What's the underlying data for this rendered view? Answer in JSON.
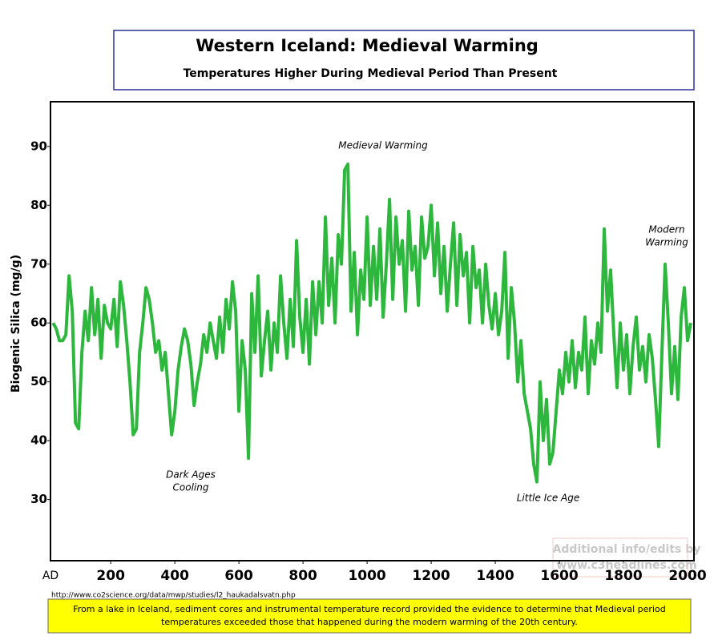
{
  "chart_data": {
    "type": "line",
    "title": "Western Iceland: Medieval Warming",
    "subtitle": "Temperatures Higher During Medieval Period Than Present",
    "y_label": "Biogenic Silica (mg/g)",
    "x_unit_label": "AD",
    "xlim": [
      12,
      2020
    ],
    "xticks": [
      200,
      400,
      600,
      800,
      1000,
      1200,
      1400,
      1600,
      1800,
      2000
    ],
    "ylim": [
      19.6,
      97.6
    ],
    "yticks": [
      30,
      40,
      50,
      60,
      70,
      80,
      90
    ],
    "color": "#2db83d",
    "x": [
      20,
      30,
      40,
      50,
      60,
      70,
      80,
      90,
      100,
      110,
      120,
      130,
      140,
      150,
      160,
      170,
      180,
      190,
      200,
      210,
      220,
      230,
      240,
      250,
      260,
      270,
      280,
      290,
      300,
      310,
      320,
      330,
      340,
      350,
      360,
      370,
      380,
      390,
      400,
      410,
      420,
      430,
      440,
      450,
      460,
      470,
      480,
      490,
      500,
      510,
      520,
      530,
      540,
      550,
      560,
      570,
      580,
      590,
      600,
      610,
      620,
      630,
      640,
      650,
      660,
      670,
      680,
      690,
      700,
      710,
      720,
      730,
      740,
      750,
      760,
      770,
      780,
      790,
      800,
      810,
      820,
      830,
      840,
      850,
      860,
      870,
      880,
      890,
      900,
      910,
      920,
      930,
      940,
      950,
      960,
      970,
      980,
      990,
      1000,
      1010,
      1020,
      1030,
      1040,
      1050,
      1060,
      1070,
      1080,
      1090,
      1100,
      1110,
      1120,
      1130,
      1140,
      1150,
      1160,
      1170,
      1180,
      1190,
      1200,
      1210,
      1220,
      1230,
      1240,
      1250,
      1260,
      1270,
      1280,
      1290,
      1300,
      1310,
      1320,
      1330,
      1340,
      1350,
      1360,
      1370,
      1380,
      1390,
      1400,
      1410,
      1420,
      1430,
      1440,
      1450,
      1460,
      1470,
      1480,
      1490,
      1500,
      1510,
      1520,
      1530,
      1540,
      1550,
      1560,
      1570,
      1580,
      1590,
      1600,
      1610,
      1620,
      1630,
      1640,
      1650,
      1660,
      1670,
      1680,
      1690,
      1700,
      1710,
      1720,
      1730,
      1740,
      1750,
      1760,
      1770,
      1780,
      1790,
      1800,
      1810,
      1820,
      1830,
      1840,
      1850,
      1860,
      1870,
      1880,
      1890,
      1900,
      1910,
      1920,
      1930,
      1940,
      1950,
      1960,
      1970,
      1980,
      1990,
      2000,
      2010
    ],
    "values": [
      60,
      59,
      57,
      57,
      58,
      68,
      62,
      43,
      42,
      55,
      62,
      57,
      66,
      58,
      64,
      54,
      63,
      60,
      59,
      64,
      56,
      67,
      63,
      57,
      50,
      41,
      42,
      55,
      60,
      66,
      64,
      60,
      55,
      57,
      52,
      55,
      48,
      41,
      45,
      52,
      56,
      59,
      57,
      53,
      46,
      50,
      53,
      58,
      55,
      60,
      57,
      54,
      61,
      55,
      64,
      59,
      67,
      62,
      45,
      57,
      52,
      37,
      65,
      55,
      68,
      51,
      57,
      62,
      52,
      60,
      55,
      68,
      60,
      54,
      64,
      56,
      74,
      61,
      55,
      64,
      53,
      67,
      58,
      67,
      60,
      78,
      63,
      71,
      60,
      75,
      70,
      86,
      87,
      62,
      72,
      58,
      69,
      64,
      78,
      63,
      73,
      64,
      76,
      61,
      70,
      81,
      64,
      78,
      70,
      74,
      62,
      79,
      69,
      73,
      63,
      78,
      71,
      73,
      80,
      68,
      77,
      65,
      73,
      62,
      70,
      77,
      63,
      75,
      68,
      72,
      60,
      73,
      66,
      69,
      60,
      70,
      63,
      59,
      65,
      58,
      62,
      72,
      54,
      66,
      60,
      50,
      57,
      48,
      45,
      42,
      36,
      33,
      50,
      40,
      47,
      36,
      38,
      45,
      52,
      48,
      55,
      50,
      57,
      49,
      55,
      52,
      61,
      48,
      57,
      53,
      60,
      55,
      76,
      62,
      69,
      58,
      49,
      60,
      52,
      58,
      48,
      56,
      61,
      52,
      56,
      50,
      58,
      54,
      47,
      39,
      55,
      70,
      60,
      48,
      56,
      47,
      61,
      66,
      57,
      60
    ],
    "annotations": [
      [
        "Medieval  Warming"
      ],
      [
        "Dark Ages",
        "Cooling"
      ],
      [
        "Little Ice Age"
      ],
      [
        "Modern",
        "Warming"
      ]
    ],
    "watermark": [
      "Additional info/edits by",
      "www.c3headlines.com"
    ],
    "source": "http://www.co2science.org/data/mwp/studies/l2_haukadalsvatn.php",
    "footnote": [
      "From a lake in Iceland, sediment cores and instrumental temperature record provided the evidence to determine that Medieval period",
      "temperatures exceeded those that happened during the modern warming of the 20th century."
    ]
  }
}
